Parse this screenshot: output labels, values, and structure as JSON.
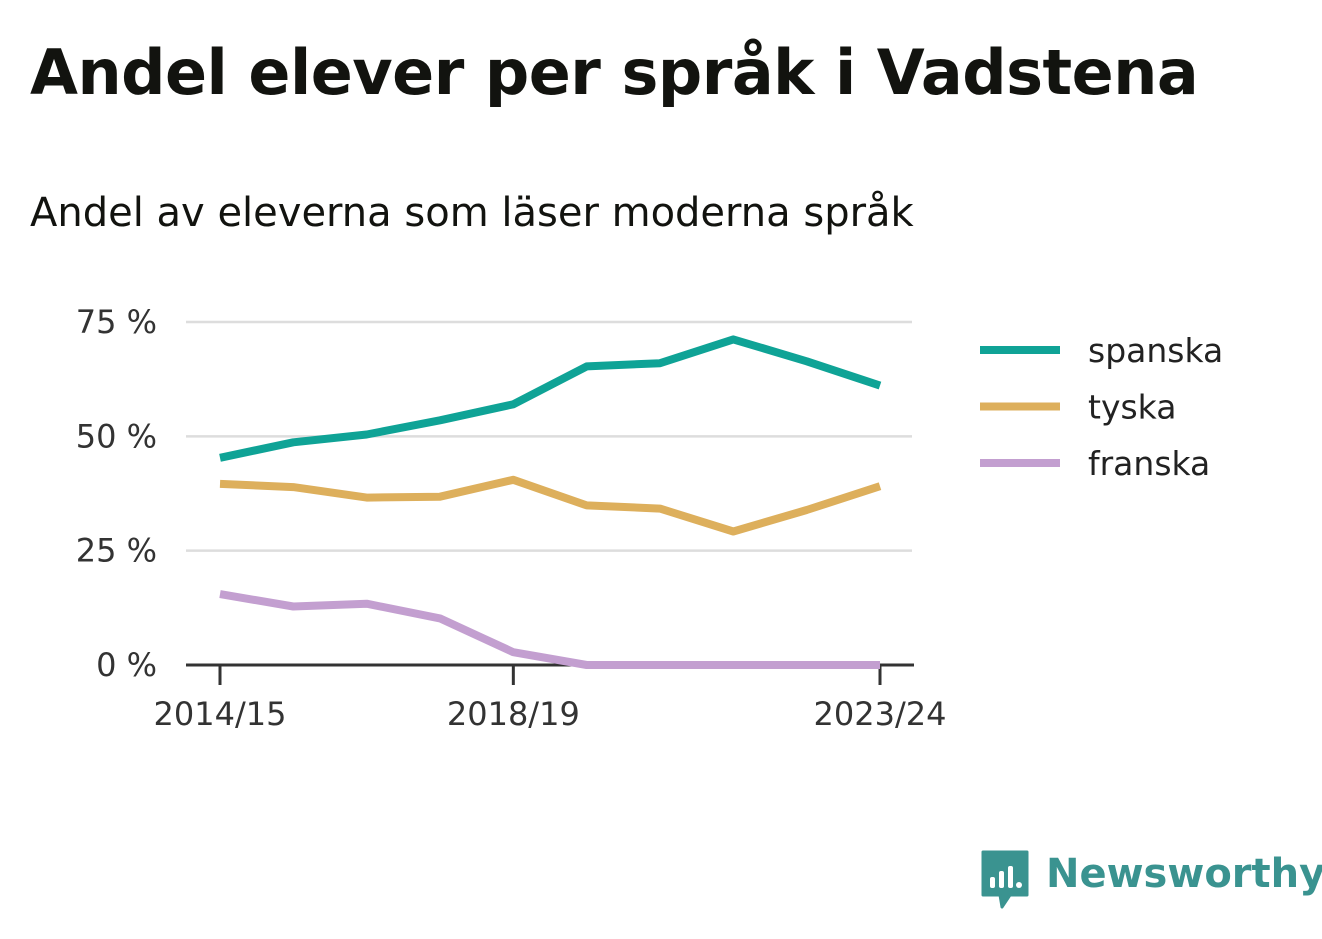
{
  "title": "Andel elever per språk i Vadstena",
  "subtitle": "Andel av eleverna som läser moderna språk",
  "brand": {
    "name": "Newsworthy",
    "color": "#3a9390",
    "icon": "bar-chart-speech-bubble-icon"
  },
  "chart_data": {
    "type": "line",
    "title": "Andel elever per språk i Vadstena",
    "subtitle": "Andel av eleverna som läser moderna språk",
    "x": [
      "2014/15",
      "2015/16",
      "2016/17",
      "2017/18",
      "2018/19",
      "2019/20",
      "2020/21",
      "2021/22",
      "2022/23",
      "2023/24"
    ],
    "x_tick_labels": [
      "2014/15",
      "2018/19",
      "2023/24"
    ],
    "ylim": [
      0,
      75
    ],
    "y_ticks": [
      0,
      25,
      50,
      75
    ],
    "y_tick_labels": [
      "0 %",
      "25 %",
      "50 %",
      "75 %"
    ],
    "grid": true,
    "legend_position": "right",
    "series": [
      {
        "name": "spanska",
        "color": "#0fa396",
        "values": [
          45.3,
          48.7,
          50.4,
          53.5,
          57.0,
          65.3,
          66.0,
          71.2,
          66.4,
          61.1
        ]
      },
      {
        "name": "tyska",
        "color": "#ddaf5c",
        "values": [
          39.6,
          38.9,
          36.6,
          36.8,
          40.5,
          34.9,
          34.2,
          29.2,
          33.9,
          39.1
        ]
      },
      {
        "name": "franska",
        "color": "#c39fd0",
        "values": [
          15.5,
          12.8,
          13.4,
          10.2,
          2.8,
          0.0,
          0.0,
          0.0,
          0.0,
          0.0
        ]
      }
    ]
  }
}
